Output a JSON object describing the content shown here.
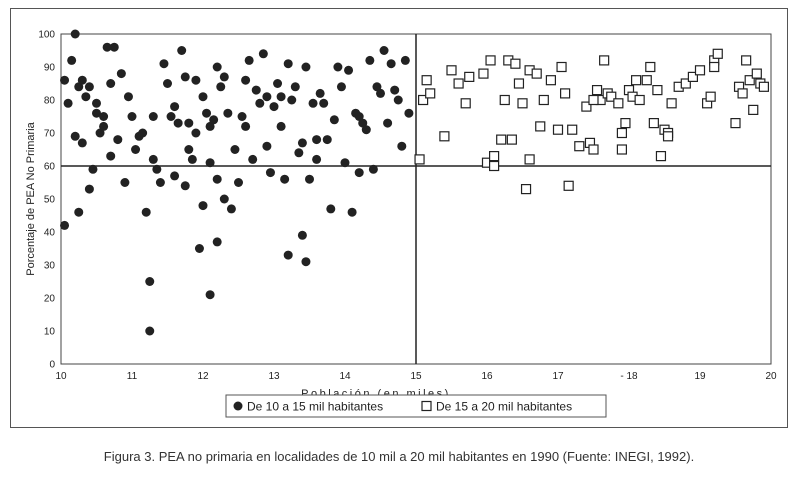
{
  "caption": "Figura 3. PEA no primaria en localidades de 10 mil a 20 mil habitantes en 1990 (Fuente: INEGI, 1992).",
  "chart_data": {
    "type": "scatter",
    "title": "",
    "xlabel": "Población (en miles)",
    "ylabel": "Porcentaje de PEA No Primaria",
    "xlim": [
      10,
      20
    ],
    "ylim": [
      0,
      100
    ],
    "xticks": [
      10,
      11,
      12,
      13,
      14,
      15,
      16,
      17,
      18,
      19,
      20
    ],
    "xtick_labels": [
      "10",
      "11",
      "12",
      "13",
      "14",
      "15",
      "16",
      "17",
      "- 18",
      "19",
      "20"
    ],
    "yticks": [
      0,
      10,
      20,
      30,
      40,
      50,
      60,
      70,
      80,
      90,
      100
    ],
    "grid": false,
    "reference_lines": {
      "x": 15,
      "y": 60
    },
    "legend_position": "bottom",
    "series": [
      {
        "name": "De 10 a 15 mil habitantes",
        "marker": "filled-circle",
        "color": "#222222",
        "points": [
          [
            10.05,
            86
          ],
          [
            10.1,
            79
          ],
          [
            10.15,
            92
          ],
          [
            10.2,
            100
          ],
          [
            10.2,
            69
          ],
          [
            10.25,
            84
          ],
          [
            10.3,
            86
          ],
          [
            10.3,
            67
          ],
          [
            10.35,
            81
          ],
          [
            10.4,
            84
          ],
          [
            10.45,
            59
          ],
          [
            10.5,
            79
          ],
          [
            10.5,
            76
          ],
          [
            10.55,
            70
          ],
          [
            10.6,
            75
          ],
          [
            10.6,
            72
          ],
          [
            10.65,
            96
          ],
          [
            10.7,
            63
          ],
          [
            10.75,
            96
          ],
          [
            10.8,
            68
          ],
          [
            10.85,
            88
          ],
          [
            10.9,
            55
          ],
          [
            10.95,
            81
          ],
          [
            11.0,
            75
          ],
          [
            11.05,
            65
          ],
          [
            11.1,
            69
          ],
          [
            11.15,
            70
          ],
          [
            11.2,
            46
          ],
          [
            11.25,
            25
          ],
          [
            11.3,
            62
          ],
          [
            11.35,
            59
          ],
          [
            11.4,
            55
          ],
          [
            11.45,
            91
          ],
          [
            11.5,
            85
          ],
          [
            11.55,
            75
          ],
          [
            11.6,
            57
          ],
          [
            11.6,
            78
          ],
          [
            11.65,
            73
          ],
          [
            11.7,
            95
          ],
          [
            11.75,
            87
          ],
          [
            11.75,
            54
          ],
          [
            11.8,
            65
          ],
          [
            11.85,
            62
          ],
          [
            11.9,
            70
          ],
          [
            11.9,
            86
          ],
          [
            11.95,
            35
          ],
          [
            12.0,
            81
          ],
          [
            12.0,
            48
          ],
          [
            12.05,
            76
          ],
          [
            12.1,
            61
          ],
          [
            12.1,
            72
          ],
          [
            12.15,
            74
          ],
          [
            12.2,
            56
          ],
          [
            12.2,
            90
          ],
          [
            12.25,
            84
          ],
          [
            12.3,
            87
          ],
          [
            12.35,
            76
          ],
          [
            12.4,
            47
          ],
          [
            12.45,
            65
          ],
          [
            12.5,
            55
          ],
          [
            12.55,
            75
          ],
          [
            12.6,
            72
          ],
          [
            12.65,
            92
          ],
          [
            12.7,
            62
          ],
          [
            12.75,
            83
          ],
          [
            12.8,
            79
          ],
          [
            12.85,
            94
          ],
          [
            12.9,
            81
          ],
          [
            12.95,
            58
          ],
          [
            13.0,
            78
          ],
          [
            13.05,
            85
          ],
          [
            13.1,
            81
          ],
          [
            13.15,
            56
          ],
          [
            13.2,
            91
          ],
          [
            13.25,
            80
          ],
          [
            13.3,
            84
          ],
          [
            13.35,
            64
          ],
          [
            13.4,
            67
          ],
          [
            13.45,
            90
          ],
          [
            13.5,
            56
          ],
          [
            13.55,
            79
          ],
          [
            13.6,
            62
          ],
          [
            13.65,
            82
          ],
          [
            13.7,
            79
          ],
          [
            13.75,
            68
          ],
          [
            13.8,
            47
          ],
          [
            13.85,
            74
          ],
          [
            13.9,
            90
          ],
          [
            13.95,
            84
          ],
          [
            14.0,
            61
          ],
          [
            14.05,
            89
          ],
          [
            14.1,
            46
          ],
          [
            14.15,
            76
          ],
          [
            14.2,
            75
          ],
          [
            14.25,
            73
          ],
          [
            14.3,
            71
          ],
          [
            14.35,
            92
          ],
          [
            14.4,
            59
          ],
          [
            14.45,
            84
          ],
          [
            14.5,
            82
          ],
          [
            14.55,
            95
          ],
          [
            14.6,
            73
          ],
          [
            14.65,
            91
          ],
          [
            14.7,
            83
          ],
          [
            14.75,
            80
          ],
          [
            14.8,
            66
          ],
          [
            14.85,
            92
          ],
          [
            14.9,
            76
          ],
          [
            10.05,
            42
          ],
          [
            11.25,
            10
          ],
          [
            12.1,
            21
          ],
          [
            12.2,
            37
          ],
          [
            13.2,
            33
          ],
          [
            13.4,
            39
          ],
          [
            13.45,
            31
          ],
          [
            11.3,
            75
          ],
          [
            10.4,
            53
          ],
          [
            10.7,
            85
          ],
          [
            12.3,
            50
          ],
          [
            12.6,
            86
          ],
          [
            13.1,
            72
          ],
          [
            13.6,
            68
          ],
          [
            14.2,
            58
          ],
          [
            10.25,
            46
          ],
          [
            11.8,
            73
          ],
          [
            12.9,
            66
          ]
        ]
      },
      {
        "name": "De 15 a 20 mil habitantes",
        "marker": "hollow-square",
        "color": "#222222",
        "points": [
          [
            15.05,
            62
          ],
          [
            15.1,
            80
          ],
          [
            15.15,
            86
          ],
          [
            15.2,
            82
          ],
          [
            15.4,
            69
          ],
          [
            15.5,
            89
          ],
          [
            15.6,
            85
          ],
          [
            15.7,
            79
          ],
          [
            15.75,
            87
          ],
          [
            15.95,
            88
          ],
          [
            16.0,
            61
          ],
          [
            16.05,
            92
          ],
          [
            16.1,
            63
          ],
          [
            16.2,
            68
          ],
          [
            16.25,
            80
          ],
          [
            16.3,
            92
          ],
          [
            16.35,
            68
          ],
          [
            16.4,
            91
          ],
          [
            16.45,
            85
          ],
          [
            16.5,
            79
          ],
          [
            16.55,
            53
          ],
          [
            16.6,
            62
          ],
          [
            16.6,
            89
          ],
          [
            16.7,
            88
          ],
          [
            16.75,
            72
          ],
          [
            16.8,
            80
          ],
          [
            16.9,
            86
          ],
          [
            17.0,
            71
          ],
          [
            17.05,
            90
          ],
          [
            17.1,
            82
          ],
          [
            17.15,
            54
          ],
          [
            17.2,
            71
          ],
          [
            17.3,
            66
          ],
          [
            17.4,
            78
          ],
          [
            17.45,
            67
          ],
          [
            17.5,
            65
          ],
          [
            17.55,
            83
          ],
          [
            17.6,
            80
          ],
          [
            17.65,
            92
          ],
          [
            17.7,
            82
          ],
          [
            17.75,
            81
          ],
          [
            17.85,
            79
          ],
          [
            17.9,
            65
          ],
          [
            17.9,
            70
          ],
          [
            17.95,
            73
          ],
          [
            18.0,
            83
          ],
          [
            18.05,
            81
          ],
          [
            18.1,
            86
          ],
          [
            18.15,
            80
          ],
          [
            18.25,
            86
          ],
          [
            18.3,
            90
          ],
          [
            18.35,
            73
          ],
          [
            18.4,
            83
          ],
          [
            18.45,
            63
          ],
          [
            18.5,
            71
          ],
          [
            18.55,
            70
          ],
          [
            18.6,
            79
          ],
          [
            18.7,
            84
          ],
          [
            18.8,
            85
          ],
          [
            18.9,
            87
          ],
          [
            19.0,
            89
          ],
          [
            19.1,
            79
          ],
          [
            19.15,
            81
          ],
          [
            19.2,
            92
          ],
          [
            19.25,
            94
          ],
          [
            19.5,
            73
          ],
          [
            19.55,
            84
          ],
          [
            19.6,
            82
          ],
          [
            19.65,
            92
          ],
          [
            19.7,
            86
          ],
          [
            19.75,
            77
          ],
          [
            19.8,
            88
          ],
          [
            19.85,
            85
          ],
          [
            19.9,
            84
          ],
          [
            17.5,
            80
          ],
          [
            16.1,
            60
          ],
          [
            18.55,
            69
          ],
          [
            19.2,
            90
          ]
        ]
      }
    ]
  }
}
